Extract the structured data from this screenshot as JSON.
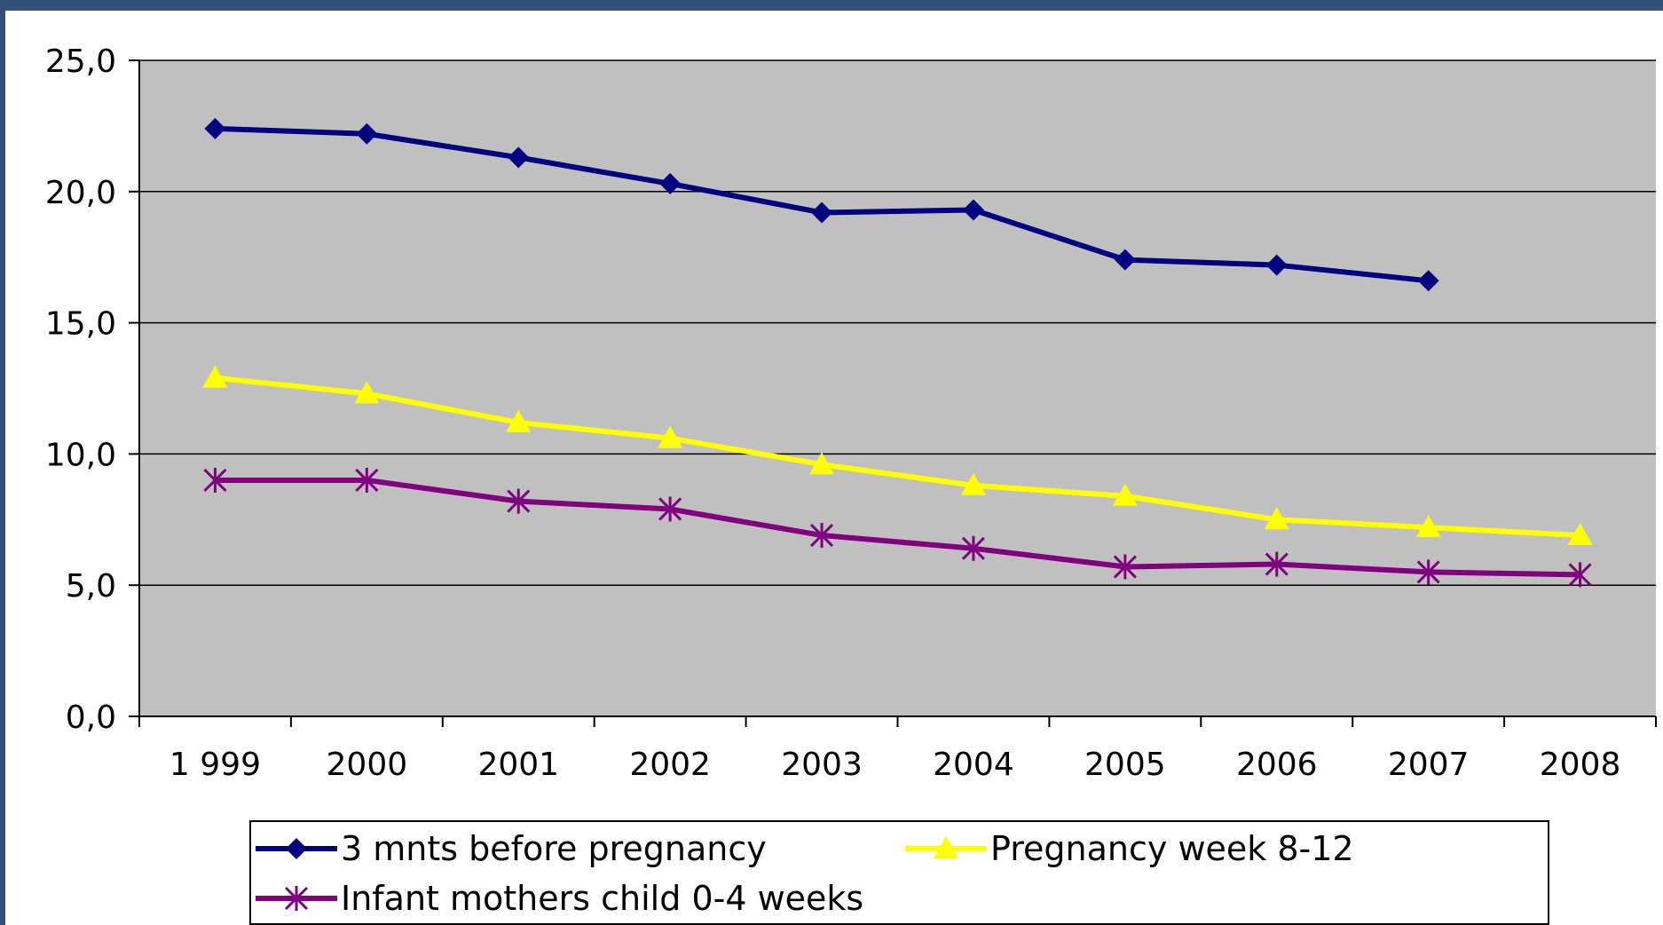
{
  "chart_data": {
    "type": "line",
    "categories": [
      "1 999",
      "2000",
      "2001",
      "2002",
      "2003",
      "2004",
      "2005",
      "2006",
      "2007",
      "2008"
    ],
    "ylim": [
      0,
      25
    ],
    "yticks": [
      "0,0",
      "5,0",
      "10,0",
      "15,0",
      "20,0",
      "25,0"
    ],
    "ytick_values": [
      0,
      5,
      10,
      15,
      20,
      25
    ],
    "grid": true,
    "legend_position": "bottom",
    "plot_background": "#c0c0c0",
    "series": [
      {
        "name": "3 mnts before pregnancy",
        "color": "#000080",
        "marker": "diamond",
        "values": [
          22.4,
          22.2,
          21.3,
          20.3,
          19.2,
          19.3,
          17.4,
          17.2,
          16.6,
          null
        ]
      },
      {
        "name": "Pregnancy week 8-12",
        "color": "#ffff00",
        "marker": "triangle",
        "values": [
          12.9,
          12.3,
          11.2,
          10.6,
          9.6,
          8.8,
          8.4,
          7.5,
          7.2,
          6.9
        ]
      },
      {
        "name": "Infant mothers child 0-4 weeks",
        "color": "#800080",
        "marker": "star",
        "values": [
          9.0,
          9.0,
          8.2,
          7.9,
          6.9,
          6.4,
          5.7,
          5.8,
          5.5,
          5.4
        ]
      }
    ]
  }
}
